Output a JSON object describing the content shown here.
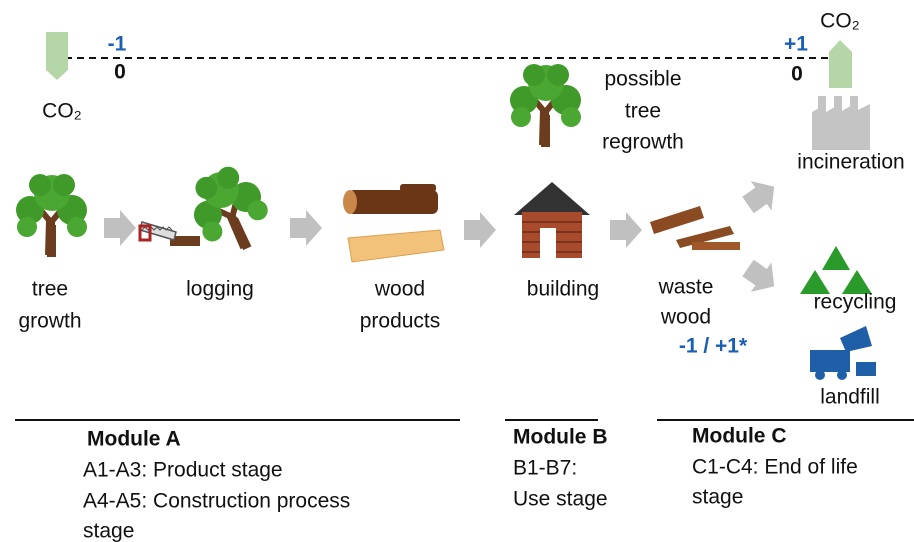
{
  "emissions": {
    "left": {
      "credit": "-1",
      "baseline": "0",
      "gas": "CO₂"
    },
    "right": {
      "credit": "+1",
      "baseline": "0",
      "gas": "CO₂"
    }
  },
  "regrowth": [
    "possible",
    "tree",
    "regrowth"
  ],
  "stages": {
    "tree_growth": [
      "tree",
      "growth"
    ],
    "logging": "logging",
    "wood_products": [
      "wood",
      "products"
    ],
    "building": "building",
    "waste_wood": [
      "waste",
      "wood"
    ],
    "waste_balance": "-1 / +1*"
  },
  "end_of_life": {
    "incineration": "incineration",
    "recycling": "recycling",
    "landfill": "landfill"
  },
  "modules": [
    {
      "title": "Module A",
      "lines": [
        "A1-A3: Product stage",
        "A4-A5: Construction process",
        "stage"
      ]
    },
    {
      "title": "Module B",
      "lines": [
        "B1-B7:",
        "Use stage"
      ]
    },
    {
      "title": "Module C",
      "lines": [
        "C1-C4: End of life",
        "stage"
      ]
    }
  ]
}
